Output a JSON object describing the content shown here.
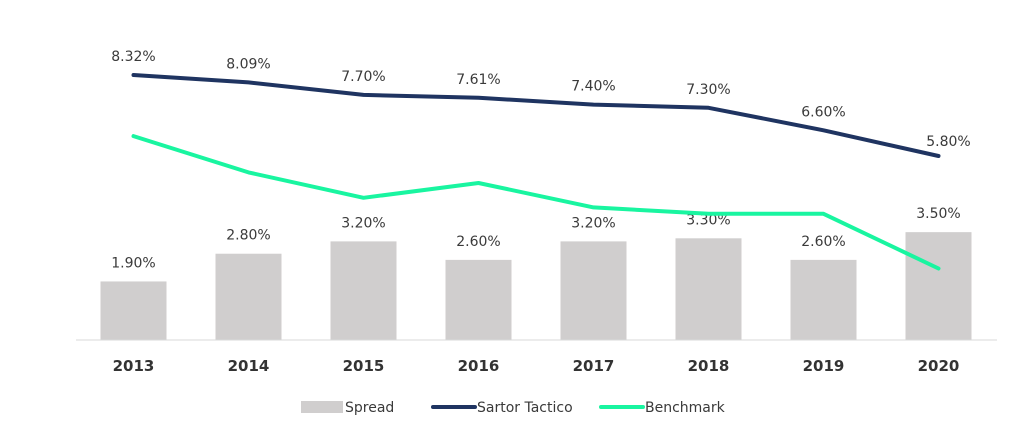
{
  "chart_data": {
    "type": "bar",
    "categories": [
      "2013",
      "2014",
      "2015",
      "2016",
      "2017",
      "2018",
      "2019",
      "2020"
    ],
    "series": [
      {
        "name": "Spread",
        "type": "bar",
        "color": "#d0cece",
        "values": [
          1.9,
          2.8,
          3.2,
          2.6,
          3.2,
          3.3,
          2.6,
          3.5
        ],
        "labels": [
          "1.90%",
          "2.80%",
          "3.20%",
          "2.60%",
          "3.20%",
          "3.30%",
          "2.60%",
          "3.50%"
        ]
      },
      {
        "name": "Sartor Tactico",
        "type": "line",
        "color": "#1f3461",
        "values": [
          8.32,
          8.09,
          7.7,
          7.61,
          7.4,
          7.3,
          6.6,
          5.8
        ],
        "labels": [
          "8.32%",
          "8.09%",
          "7.70%",
          "7.61%",
          "7.40%",
          "7.30%",
          "6.60%",
          "5.80%"
        ]
      },
      {
        "name": "Benchmark",
        "type": "line",
        "color": "#19f5a0",
        "values": [
          6.42,
          5.29,
          4.5,
          4.96,
          4.2,
          4.0,
          4.0,
          2.3
        ]
      }
    ],
    "ylim": [
      0,
      8.5
    ],
    "legend_position": "bottom",
    "grid": false
  }
}
